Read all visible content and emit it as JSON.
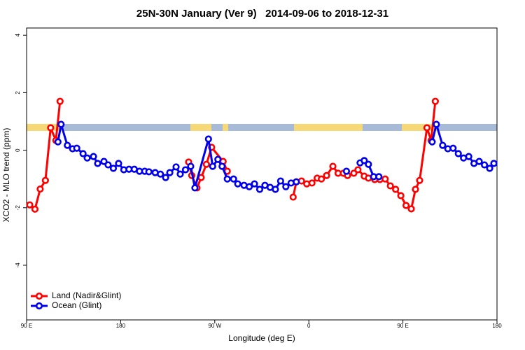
{
  "chart_data": {
    "type": "line",
    "title": "25N-30N January (Ver 9)   2014-09-06 to 2018-12-31",
    "xlabel": "Longitude (deg E)",
    "ylabel": "XCO2 - MLO trend (ppm)",
    "xlim": [
      90,
      540
    ],
    "xticks": [
      {
        "value": 90,
        "label": "90 E"
      },
      {
        "value": 180,
        "label": "180"
      },
      {
        "value": 270,
        "label": "90 W"
      },
      {
        "value": 360,
        "label": "0"
      },
      {
        "value": 450,
        "label": "90 E"
      },
      {
        "value": 540,
        "label": "180"
      }
    ],
    "ylim": [
      -5.9,
      4.25
    ],
    "yticks": [
      -4,
      -2,
      0,
      2,
      4
    ],
    "legend": "bottom-left",
    "series": [
      {
        "name": "Land (Nadir&Glint)",
        "color": "#ff0000",
        "x": [
          93,
          98,
          103,
          108,
          113,
          118,
          122,
          null,
          245,
          248,
          253,
          257,
          262,
          267,
          278,
          282,
          null,
          345,
          348,
          353,
          358,
          363,
          368,
          372,
          377,
          383,
          388,
          393,
          397,
          403,
          407,
          413,
          417,
          423,
          428,
          433,
          438,
          443,
          448,
          453,
          458,
          462,
          466,
          473,
          477,
          481
        ],
        "values": [
          -1.9,
          -2.05,
          -1.35,
          -1.05,
          0.78,
          0.34,
          1.7,
          null,
          -0.41,
          -0.88,
          -1.31,
          -0.95,
          -0.49,
          0.1,
          -0.39,
          -0.73,
          null,
          -1.63,
          -1.1,
          -1.07,
          -1.17,
          -1.14,
          -0.97,
          -1.0,
          -0.88,
          -0.56,
          -0.8,
          -0.8,
          -0.88,
          -0.8,
          -0.68,
          -0.9,
          -0.97,
          -1.02,
          -1.02,
          -1.0,
          -1.24,
          -1.36,
          -1.58,
          -1.92,
          -2.04,
          -1.36,
          -1.05,
          0.78,
          0.34,
          1.7
        ]
      },
      {
        "name": "Ocean (Glint)",
        "color": "#0000ee",
        "x": [
          120,
          123,
          129,
          134,
          138,
          144,
          148,
          154,
          158,
          164,
          168,
          173,
          178,
          183,
          188,
          193,
          198,
          203,
          207,
          213,
          218,
          223,
          227,
          233,
          237,
          242,
          247,
          251,
          264,
          268,
          273,
          277,
          282,
          288,
          292,
          298,
          303,
          308,
          313,
          318,
          323,
          328,
          333,
          338,
          343,
          348,
          null,
          396,
          null,
          409,
          413,
          417,
          422,
          427,
          null,
          478,
          482,
          488,
          493,
          498,
          503,
          508,
          513,
          518,
          523,
          528,
          533,
          537
        ],
        "values": [
          0.29,
          0.9,
          0.17,
          0.05,
          0.07,
          -0.12,
          -0.27,
          -0.22,
          -0.46,
          -0.39,
          -0.51,
          -0.63,
          -0.46,
          -0.68,
          -0.66,
          -0.66,
          -0.73,
          -0.73,
          -0.75,
          -0.78,
          -0.83,
          -0.95,
          -0.78,
          -0.58,
          -0.83,
          -0.68,
          -0.56,
          -1.31,
          0.39,
          -0.56,
          -0.32,
          -0.56,
          -1.0,
          -1.0,
          -1.17,
          -1.22,
          -1.27,
          -1.17,
          -1.36,
          -1.22,
          -1.29,
          -1.36,
          -1.07,
          -1.27,
          -1.14,
          -1.1,
          null,
          -0.73,
          null,
          -0.44,
          -0.36,
          -0.49,
          -0.92,
          -0.92,
          null,
          0.29,
          0.9,
          0.17,
          0.05,
          0.07,
          -0.12,
          -0.27,
          -0.22,
          -0.46,
          -0.39,
          -0.51,
          -0.63,
          -0.46
        ]
      }
    ]
  }
}
